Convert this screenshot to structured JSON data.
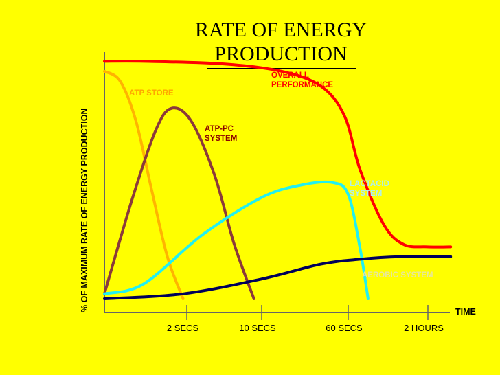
{
  "chart_data": {
    "type": "line",
    "title_line1": "RATE OF ENERGY",
    "title_line2": "PRODUCTION",
    "ylabel": "% OF MAXIMUM RATE OF ENERGY PRODUCTION",
    "xlabel": "TIME",
    "x_ticks": [
      "2 SECS",
      "10 SECS",
      "60 SECS",
      "2 HOURS"
    ],
    "ylim": [
      0,
      100
    ],
    "grid": false,
    "series": [
      {
        "name": "OVERALL PERFORMANCE",
        "color": "#FF0000",
        "points": [
          [
            0,
            96
          ],
          [
            0.1,
            96
          ],
          [
            0.3,
            95
          ],
          [
            0.45,
            92
          ],
          [
            0.55,
            86
          ],
          [
            0.61,
            74
          ],
          [
            0.65,
            52
          ],
          [
            0.71,
            30
          ],
          [
            0.76,
            22
          ],
          [
            0.82,
            21
          ],
          [
            0.88,
            21
          ]
        ]
      },
      {
        "name": "ATP STORE",
        "color": "#FFB400",
        "points": [
          [
            0,
            92
          ],
          [
            0.04,
            88
          ],
          [
            0.08,
            72
          ],
          [
            0.12,
            44
          ],
          [
            0.16,
            17
          ],
          [
            0.2,
            0
          ]
        ]
      },
      {
        "name": "ATP-PC SYSTEM",
        "color": "#8B3A3A",
        "points": [
          [
            0,
            2
          ],
          [
            0.07,
            40
          ],
          [
            0.13,
            68
          ],
          [
            0.17,
            77
          ],
          [
            0.22,
            72
          ],
          [
            0.28,
            50
          ],
          [
            0.33,
            22
          ],
          [
            0.38,
            0
          ]
        ]
      },
      {
        "name": "LACTACID SYSTEM",
        "color": "#22F0F0",
        "points": [
          [
            0,
            2
          ],
          [
            0.1,
            6
          ],
          [
            0.25,
            26
          ],
          [
            0.4,
            41
          ],
          [
            0.5,
            46
          ],
          [
            0.58,
            47
          ],
          [
            0.62,
            42
          ],
          [
            0.65,
            20
          ],
          [
            0.67,
            0
          ]
        ]
      },
      {
        "name": "AEROBIC SYSTEM",
        "color": "#00005A",
        "points": [
          [
            0,
            0
          ],
          [
            0.2,
            2
          ],
          [
            0.4,
            8
          ],
          [
            0.55,
            14
          ],
          [
            0.65,
            16
          ],
          [
            0.75,
            17
          ],
          [
            0.88,
            17
          ]
        ]
      }
    ],
    "annotations": [
      {
        "lines": [
          "OVERALL",
          "PERFORMANCE"
        ],
        "color": "#FF0000"
      },
      {
        "lines": [
          "ATP STORE"
        ],
        "color": "#FFA500"
      },
      {
        "lines": [
          "ATP-PC",
          "SYSTEM"
        ],
        "color": "#8B0000"
      },
      {
        "lines": [
          "LACTACID",
          "SYSTEM"
        ],
        "color": "#AEEFEF"
      },
      {
        "lines": [
          "AEROBIC SYSTEM"
        ],
        "color": "#E6E6A0"
      }
    ]
  }
}
